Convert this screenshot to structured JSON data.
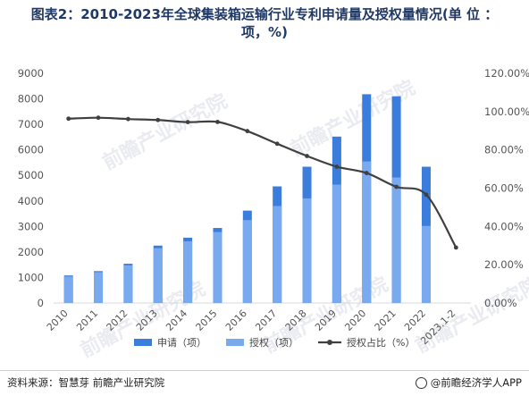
{
  "header": {
    "title": "图表2：2010-2023年全球集装箱运输行业专利申请量及授权量情况(单 位 ：",
    "title_line2": "项，%)"
  },
  "footer": {
    "source": "资料来源：智慧芽 前瞻产业研究院",
    "brand": "@前瞻经济学人APP"
  },
  "watermark": {
    "text": "前瞻产业研究院"
  },
  "chart_data": {
    "type": "bar",
    "categories": [
      "2010",
      "2011",
      "2012",
      "2013",
      "2014",
      "2015",
      "2016",
      "2017",
      "2018",
      "2019",
      "2020",
      "2021",
      "2022",
      "2023.1-2"
    ],
    "series": [
      {
        "name": "申请（项）",
        "type": "bar",
        "axis": "left",
        "color": "#3b7ddd",
        "values": [
          1080,
          1250,
          1540,
          2250,
          2560,
          2940,
          3620,
          4570,
          5340,
          6520,
          8180,
          8100,
          5340,
          null
        ]
      },
      {
        "name": "授权（项）",
        "type": "bar",
        "axis": "left",
        "color": "#79a9ee",
        "values": [
          1040,
          1210,
          1480,
          2150,
          2420,
          2780,
          3250,
          3800,
          4100,
          4640,
          5550,
          4920,
          3020,
          null
        ]
      },
      {
        "name": "授权占比（%）",
        "type": "line",
        "axis": "right",
        "color": "#404040",
        "values": [
          96.3,
          96.8,
          96.1,
          95.6,
          94.5,
          94.6,
          89.8,
          83.2,
          76.8,
          71.2,
          67.9,
          60.7,
          56.6,
          29.0
        ]
      }
    ],
    "y_left": {
      "min": 0,
      "max": 9000,
      "ticks": [
        0,
        1000,
        2000,
        3000,
        4000,
        5000,
        6000,
        7000,
        8000,
        9000
      ]
    },
    "y_right": {
      "min": 0,
      "max": 120,
      "ticks": [
        "0.00%",
        "20.00%",
        "40.00%",
        "60.00%",
        "80.00%",
        "100.00%",
        "120.00%"
      ]
    },
    "grid": false,
    "legend_position": "bottom"
  }
}
